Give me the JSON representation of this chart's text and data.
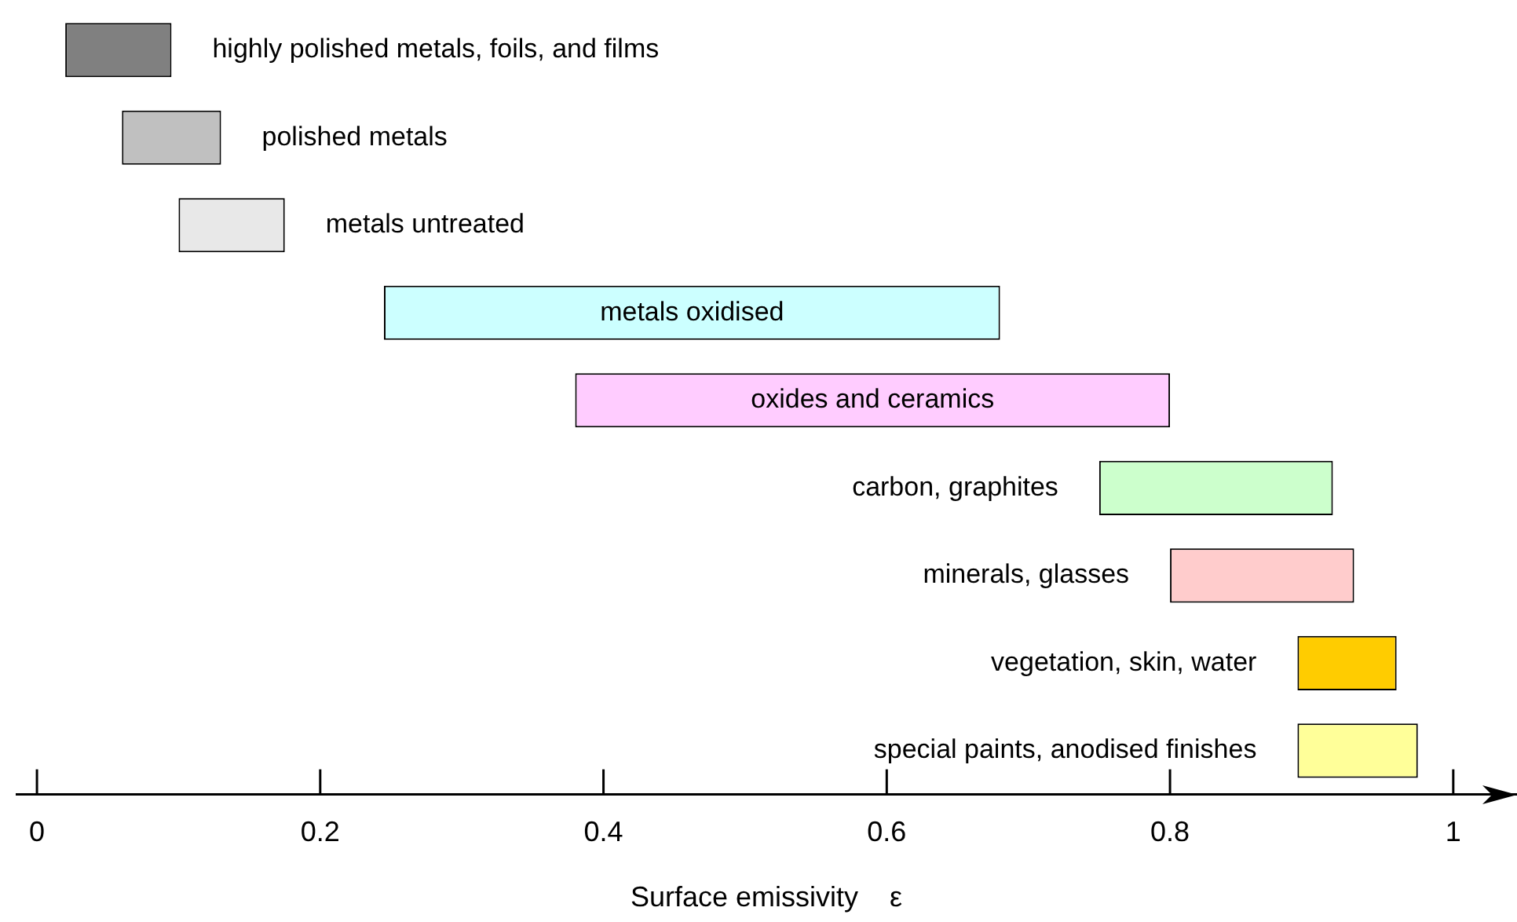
{
  "chart_data": {
    "type": "bar",
    "orientation": "horizontal",
    "xlabel": "Surface emissivity    ε",
    "categories": [
      "highly polished metals, foils, and films",
      "polished metals",
      "metals untreated",
      "metals oxidised",
      "oxides and ceramics",
      "carbon, graphites",
      "minerals, glasses",
      "vegetation, skin, water",
      "special paints, anodised finishes"
    ],
    "base": [
      0.02,
      0.06,
      0.1,
      0.245,
      0.38,
      0.75,
      0.8,
      0.89,
      0.89
    ],
    "values": [
      0.075,
      0.07,
      0.075,
      0.435,
      0.42,
      0.165,
      0.13,
      0.07,
      0.085
    ],
    "colors": [
      "#808080",
      "#c0c0c0",
      "#e8e8e8",
      "#ccffff",
      "#ffccff",
      "#ccffcc",
      "#ffcccc",
      "#ffcc00",
      "#ffff99"
    ],
    "xlim": [
      -0.015,
      1.045
    ],
    "xticks": [
      0,
      0.2,
      0.4,
      0.6,
      0.8,
      1
    ],
    "tick_labels": "x",
    "grid": false,
    "legend": false
  }
}
